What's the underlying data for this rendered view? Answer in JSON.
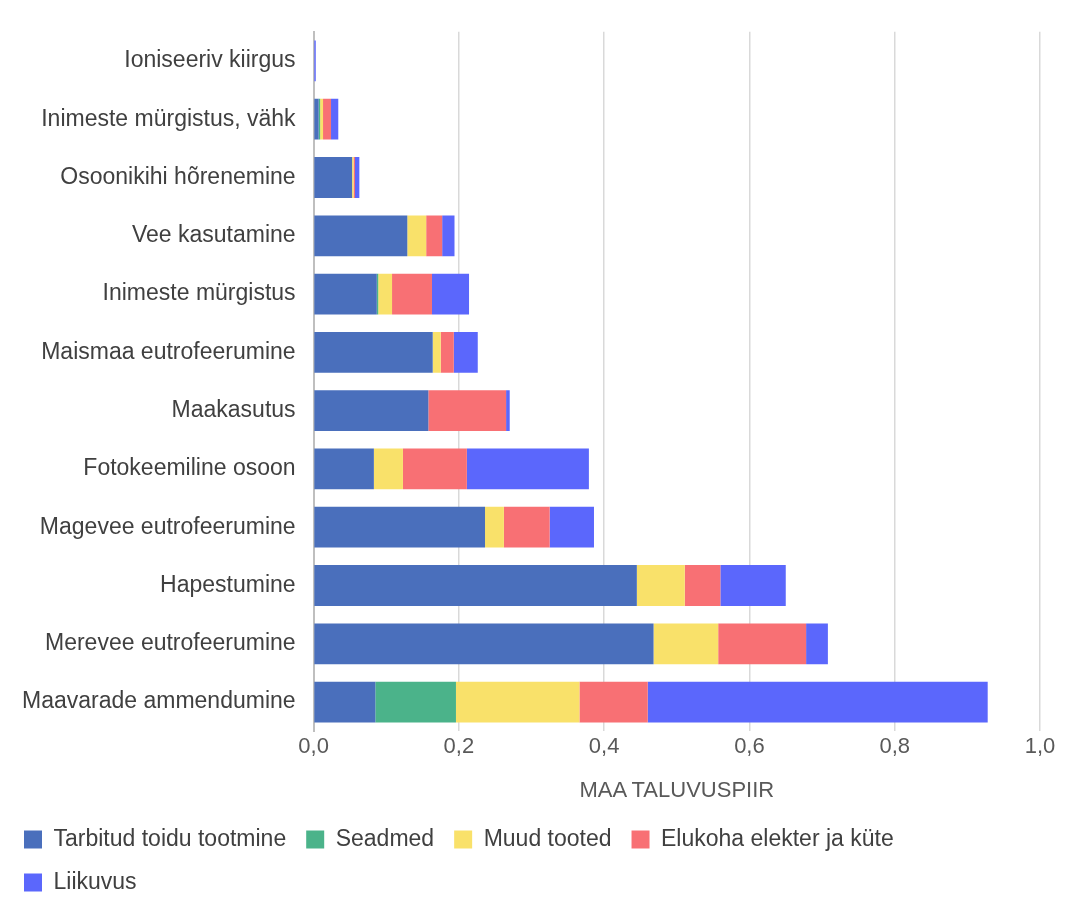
{
  "chart_data": {
    "type": "bar",
    "orientation": "horizontal",
    "stacked": true,
    "categories": [
      "Ioniseeriv kiirgus",
      "Inimeste mürgistus, vähk",
      "Osoonikihi hõrenemine",
      "Vee kasutamine",
      "Inimeste mürgistus",
      "Maismaa eutrofeerumine",
      "Maakasutus",
      "Fotokeemiline osoon",
      "Magevee eutrofeerumine",
      "Hapestumine",
      "Merevee eutrofeerumine",
      "Maavarade ammendumine"
    ],
    "series": [
      {
        "name": "Tarbitud toidu tootmine",
        "color": "#4a6fbc",
        "values": [
          0,
          0.007,
          0.053,
          0.129,
          0.087,
          0.164,
          0.158,
          0.083,
          0.236,
          0.445,
          0.468,
          0.085
        ]
      },
      {
        "name": "Seadmed",
        "color": "#4bb38a",
        "values": [
          0,
          0.002,
          0,
          0,
          0.002,
          0,
          0,
          0,
          0,
          0,
          0,
          0.111
        ]
      },
      {
        "name": "Muud tooted",
        "color": "#f9e16a",
        "values": [
          0,
          0.004,
          0.002,
          0.026,
          0.019,
          0.011,
          0,
          0.04,
          0.026,
          0.066,
          0.089,
          0.17
        ]
      },
      {
        "name": "Elukoha elekter ja küte",
        "color": "#f87074",
        "values": [
          null,
          0.011,
          0.002,
          0.022,
          0.055,
          0.018,
          0.107,
          0.088,
          0.063,
          0.049,
          0.121,
          0.094
        ]
      },
      {
        "name": "Liikuvus",
        "color": "#5b67fc",
        "values": [
          0.003,
          0.01,
          0.006,
          0.017,
          0.051,
          0.033,
          0.005,
          0.168,
          0.061,
          0.09,
          0.03,
          0.468
        ]
      }
    ],
    "xlabel": "MAA TALUVUSPIIR",
    "xlim": [
      0,
      1
    ],
    "xticks": [
      {
        "value": 0,
        "label": "0,0"
      },
      {
        "value": 0.2,
        "label": "0,2"
      },
      {
        "value": 0.4,
        "label": "0,4"
      },
      {
        "value": 0.6,
        "label": "0,6"
      },
      {
        "value": 0.8,
        "label": "0,8"
      },
      {
        "value": 1,
        "label": "1,0"
      }
    ],
    "grid": "x",
    "legend": "bottom"
  }
}
